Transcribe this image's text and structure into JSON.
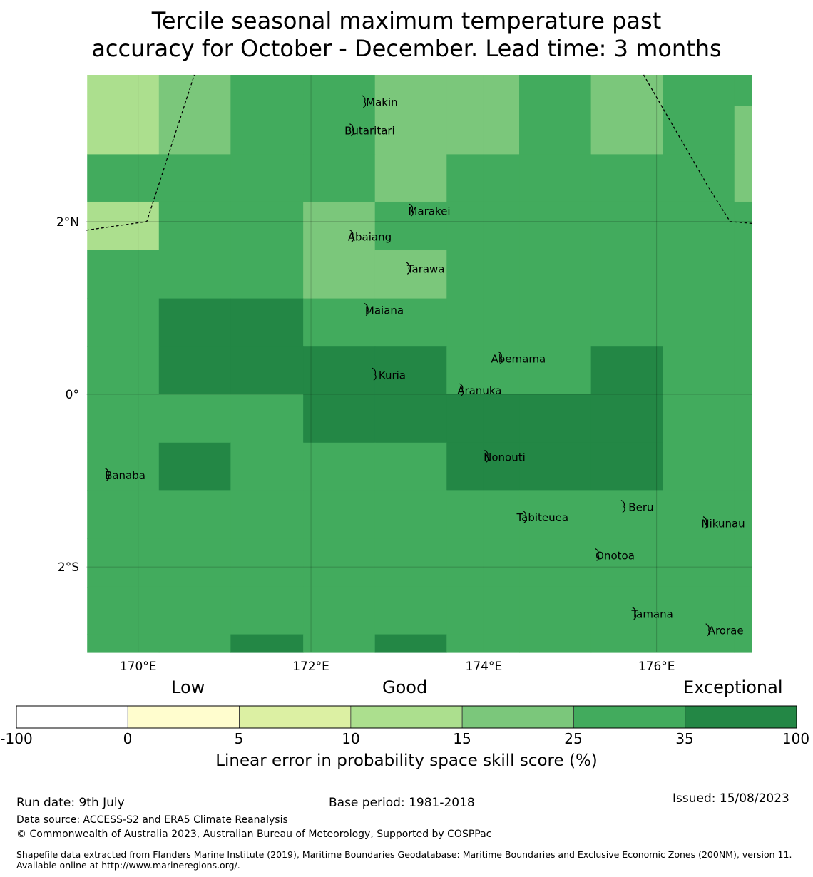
{
  "title": {
    "line1": "Tercile seasonal maximum temperature past",
    "line2": "accuracy for October - December. Lead time: 3 months"
  },
  "map": {
    "lon_range": [
      169.4,
      177.1
    ],
    "lat_range": [
      -2.99,
      3.7
    ],
    "x_ticks": [
      {
        "value": 170,
        "label": "170°E"
      },
      {
        "value": 172,
        "label": "172°E"
      },
      {
        "value": 174,
        "label": "174°E"
      },
      {
        "value": 176,
        "label": "176°E"
      }
    ],
    "y_ticks": [
      {
        "value": 2,
        "label": "2°N"
      },
      {
        "value": 0,
        "label": "0°"
      },
      {
        "value": -2,
        "label": "2°S"
      }
    ],
    "grid": true,
    "grid_lons": [
      169.41,
      170.24,
      171.07,
      171.91,
      172.74,
      173.57,
      174.41,
      175.24,
      176.07,
      176.9,
      177.1
    ],
    "grid_lats": [
      3.7,
      3.34,
      2.78,
      2.23,
      1.67,
      1.11,
      0.56,
      0.0,
      -0.56,
      -1.11,
      -1.67,
      -2.23,
      -2.78,
      -2.99
    ],
    "cells": [
      [
        3,
        4,
        5,
        5,
        4,
        4,
        5,
        4,
        5,
        5
      ],
      [
        3,
        4,
        5,
        5,
        4,
        4,
        5,
        4,
        5,
        4
      ],
      [
        5,
        5,
        5,
        5,
        4,
        5,
        5,
        5,
        5,
        4
      ],
      [
        3,
        5,
        5,
        4,
        5,
        5,
        5,
        5,
        5,
        5
      ],
      [
        5,
        5,
        5,
        4,
        4,
        5,
        5,
        5,
        5,
        5
      ],
      [
        5,
        6,
        6,
        5,
        5,
        5,
        5,
        5,
        5,
        5
      ],
      [
        5,
        6,
        6,
        6,
        6,
        5,
        5,
        6,
        5,
        5
      ],
      [
        5,
        5,
        5,
        6,
        6,
        6,
        6,
        6,
        5,
        5
      ],
      [
        5,
        6,
        5,
        5,
        5,
        6,
        6,
        6,
        5,
        5
      ],
      [
        5,
        5,
        5,
        5,
        5,
        5,
        5,
        5,
        5,
        5
      ],
      [
        5,
        5,
        5,
        5,
        5,
        5,
        5,
        5,
        5,
        5
      ],
      [
        5,
        5,
        5,
        5,
        5,
        5,
        5,
        5,
        5,
        5
      ],
      [
        5,
        5,
        6,
        5,
        6,
        5,
        5,
        5,
        5,
        5
      ]
    ],
    "boundaries": [
      [
        [
          169.4,
          1.9
        ],
        [
          170.1,
          2.0
        ],
        [
          170.65,
          3.7
        ]
      ],
      [
        [
          175.85,
          3.7
        ],
        [
          176.6,
          2.4
        ],
        [
          176.85,
          2.0
        ],
        [
          177.1,
          1.98
        ]
      ]
    ],
    "islands": [
      {
        "name": "Makin",
        "lon": 172.82,
        "lat": 3.38
      },
      {
        "name": "Butaritari",
        "lon": 172.68,
        "lat": 3.05
      },
      {
        "name": "Marakei",
        "lon": 173.37,
        "lat": 2.12
      },
      {
        "name": "Abaiang",
        "lon": 172.68,
        "lat": 1.82
      },
      {
        "name": "Tarawa",
        "lon": 173.33,
        "lat": 1.45
      },
      {
        "name": "Maiana",
        "lon": 172.85,
        "lat": 0.97
      },
      {
        "name": "Abemama",
        "lon": 174.4,
        "lat": 0.41
      },
      {
        "name": "Kuria",
        "lon": 172.94,
        "lat": 0.22
      },
      {
        "name": "Aranuka",
        "lon": 173.95,
        "lat": 0.04
      },
      {
        "name": "Nonouti",
        "lon": 174.24,
        "lat": -0.73
      },
      {
        "name": "Banaba",
        "lon": 169.85,
        "lat": -0.94
      },
      {
        "name": "Beru",
        "lon": 175.82,
        "lat": -1.31
      },
      {
        "name": "Tabiteuea",
        "lon": 174.68,
        "lat": -1.43
      },
      {
        "name": "Nikunau",
        "lon": 176.77,
        "lat": -1.5
      },
      {
        "name": "Onotoa",
        "lon": 175.52,
        "lat": -1.87
      },
      {
        "name": "Tamana",
        "lon": 175.95,
        "lat": -2.55
      },
      {
        "name": "Arorae",
        "lon": 176.8,
        "lat": -2.74
      }
    ]
  },
  "colorbar": {
    "categories": [
      "Low",
      "Good",
      "Exceptional"
    ],
    "bounds": [
      -100,
      0,
      5,
      10,
      15,
      25,
      35,
      100
    ],
    "tick_labels": [
      "-100",
      "0",
      "5",
      "10",
      "15",
      "25",
      "35",
      "100"
    ],
    "colors": [
      "#ffffff",
      "#fffdce",
      "#dcf0a3",
      "#acdf8e",
      "#7bc77b",
      "#42ab5d",
      "#238745"
    ],
    "label": "Linear error in probability space skill score (%)"
  },
  "footer": {
    "run_date": "Run date: 9th July",
    "base_period": "Base period: 1981-2018",
    "issued": "Issued: 15/08/2023",
    "data_source": "Data source: ACCESS-S2 and ERA5 Climate Reanalysis",
    "copyright": "© Commonwealth of Australia 2023, Australian Bureau of Meteorology, Supported by COSPPac",
    "shapefile": "Shapefile data extracted from Flanders Marine Institute (2019), Maritime Boundaries Geodatabase: Maritime Boundaries and Exclusive Economic Zones (200NM), version 11. Available online at http://www.marineregions.org/."
  }
}
